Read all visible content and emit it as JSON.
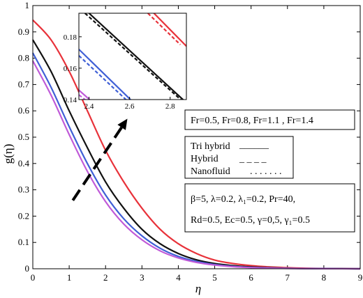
{
  "chart_data": {
    "type": "line",
    "xlabel": "η",
    "ylabel": "g(η)",
    "xlim": [
      0,
      9
    ],
    "ylim": [
      0,
      1
    ],
    "xticks": [
      "0",
      "1",
      "2",
      "3",
      "4",
      "5",
      "6",
      "7",
      "8",
      "9"
    ],
    "yticks": [
      "0",
      "0.1",
      "0.2",
      "0.3",
      "0.4",
      "0.5",
      "0.6",
      "0.7",
      "0.8",
      "0.9",
      "1"
    ],
    "grid": false,
    "series": [
      {
        "color": "#e8323a",
        "x": [
          0,
          0.5,
          1,
          1.5,
          2,
          2.5,
          3,
          3.5,
          4,
          4.5,
          5,
          5.5,
          6,
          6.5,
          7,
          7.5,
          8,
          8.5,
          9
        ],
        "values": [
          0.945,
          0.87,
          0.75,
          0.6,
          0.45,
          0.33,
          0.23,
          0.15,
          0.095,
          0.058,
          0.033,
          0.02,
          0.012,
          0.007,
          0.004,
          0.002,
          0.001,
          0.0005,
          0
        ]
      },
      {
        "color": "#111111",
        "x": [
          0,
          0.5,
          1,
          1.5,
          2,
          2.5,
          3,
          3.5,
          4,
          4.5,
          5,
          5.5,
          6,
          6.5,
          7,
          7.5,
          8,
          8.5,
          9
        ],
        "values": [
          0.87,
          0.75,
          0.6,
          0.46,
          0.33,
          0.23,
          0.15,
          0.095,
          0.058,
          0.034,
          0.02,
          0.012,
          0.007,
          0.004,
          0.002,
          0.001,
          0.0006,
          0.0003,
          0
        ]
      },
      {
        "color": "#3f5fd6",
        "x": [
          0,
          0.5,
          1,
          1.5,
          2,
          2.5,
          3,
          3.5,
          4,
          4.5,
          5,
          5.5,
          6,
          6.5,
          7,
          7.5,
          8,
          8.5,
          9
        ],
        "values": [
          0.82,
          0.69,
          0.54,
          0.4,
          0.28,
          0.19,
          0.125,
          0.078,
          0.047,
          0.028,
          0.016,
          0.009,
          0.005,
          0.003,
          0.0015,
          0.0008,
          0.0004,
          0.0002,
          0
        ]
      },
      {
        "color": "#c05ad8",
        "x": [
          0,
          0.5,
          1,
          1.5,
          2,
          2.5,
          3,
          3.5,
          4,
          4.5,
          5,
          5.5,
          6,
          6.5,
          7,
          7.5,
          8,
          8.5,
          9
        ],
        "values": [
          0.79,
          0.66,
          0.51,
          0.37,
          0.255,
          0.17,
          0.11,
          0.068,
          0.041,
          0.024,
          0.014,
          0.008,
          0.0045,
          0.0025,
          0.0013,
          0.0007,
          0.0003,
          0.0001,
          0
        ]
      }
    ],
    "arrow": {
      "from": [
        1.1,
        0.26
      ],
      "to": [
        2.6,
        0.57
      ]
    },
    "inset": {
      "xlim": [
        2.35,
        2.88
      ],
      "ylim": [
        0.14,
        0.195
      ],
      "xticks": [
        "2.4",
        "2.6",
        "2.8"
      ],
      "yticks": [
        "0.14",
        "0.16",
        "0.18"
      ],
      "lines": [
        {
          "color": "#e8323a",
          "x": [
            2.72,
            2.88
          ],
          "values": [
            0.195,
            0.174
          ]
        },
        {
          "color": "#e8323a",
          "x": [
            2.69,
            2.85
          ],
          "values": [
            0.195,
            0.175
          ]
        },
        {
          "color": "#111111",
          "x": [
            2.4,
            2.88
          ],
          "values": [
            0.195,
            0.138
          ]
        },
        {
          "color": "#111111",
          "x": [
            2.38,
            2.86
          ],
          "values": [
            0.195,
            0.139
          ]
        },
        {
          "color": "#3f5fd6",
          "x": [
            2.35,
            2.62
          ],
          "values": [
            0.172,
            0.138
          ]
        },
        {
          "color": "#3f5fd6",
          "x": [
            2.35,
            2.59
          ],
          "values": [
            0.168,
            0.139
          ]
        },
        {
          "color": "#c05ad8",
          "x": [
            2.35,
            2.42
          ],
          "values": [
            0.146,
            0.138
          ]
        },
        {
          "color": "#c05ad8",
          "x": [
            2.35,
            2.39
          ],
          "values": [
            0.143,
            0.139
          ]
        }
      ]
    }
  },
  "legend_param": "Fr=0.5, Fr=0.8, Fr=1.1 , Fr=1.4",
  "legend_types": [
    {
      "label": "Tri hybrid",
      "style": "______"
    },
    {
      "label": "Hybrid",
      "style": "_ _ _ _"
    },
    {
      "label": "Nanofluid",
      "style": ". . . . . . ."
    }
  ],
  "params_line1": "β=5,   λ=0.2,   λ₁=0.2,   Pr=40,",
  "params_line2": "Rd=0.5, Ec=0.5, γ=0,5, γ₁=0.5"
}
